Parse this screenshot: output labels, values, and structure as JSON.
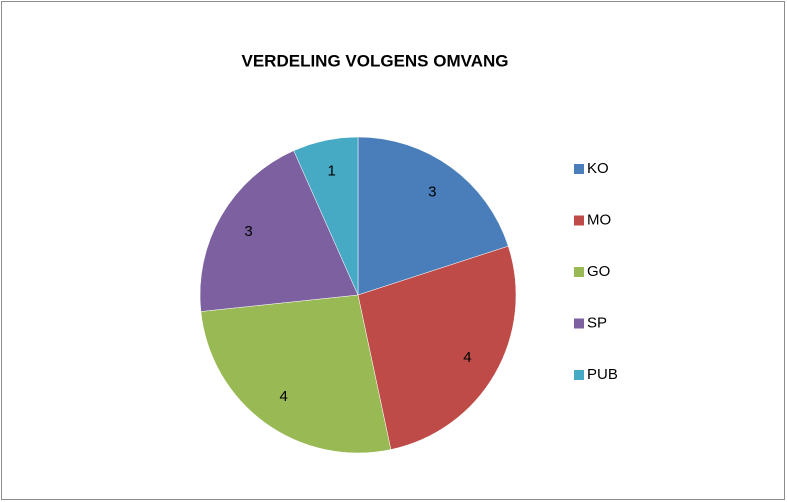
{
  "chart_data": {
    "type": "pie",
    "title": "VERDELING VOLGENS OMVANG",
    "categories": [
      "KO",
      "MO",
      "GO",
      "SP",
      "PUB"
    ],
    "values": [
      3,
      4,
      4,
      3,
      1
    ],
    "colors": [
      "#4a7ebb",
      "#be4b48",
      "#98b954",
      "#7d60a0",
      "#46aac5"
    ],
    "legend": "right"
  }
}
